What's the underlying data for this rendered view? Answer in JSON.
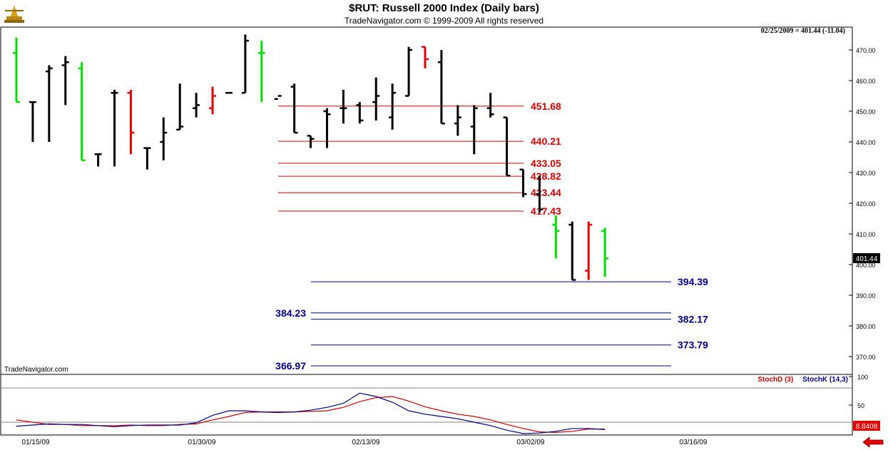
{
  "header": {
    "title": "$RUT:  Russell 2000 Index  (Daily bars)",
    "copyright": "TradeNavigator.com © 1999-2009 All rights reserved"
  },
  "readout": "02/25/2009 = 401.44 (-11.04)",
  "watermark": "TradeNavigator.com",
  "last_price_tag": "401.44",
  "stoch_value_tag": "8.8408",
  "stoch_legend": {
    "d": "StochD (3)",
    "k": "StochK (14,3)"
  },
  "colors": {
    "up_day": "#00dd00",
    "down_day": "#000000",
    "reversal": "#e00000",
    "resistance": "#d40000",
    "support": "#00008b"
  },
  "chart_data": [
    {
      "type": "ohlc",
      "title": "$RUT:  Russell 2000 Index  (Daily bars)",
      "ylim": [
        360,
        476
      ],
      "y_ticks": [
        370,
        380,
        390,
        400,
        410,
        420,
        430,
        440,
        450,
        460,
        470
      ],
      "x_ticks": [
        "01/15/09",
        "01/30/09",
        "02/13/09",
        "03/02/09",
        "03/16/09"
      ],
      "bars": [
        {
          "o": 469,
          "h": 474,
          "l": 453,
          "c": 453,
          "col": "g"
        },
        {
          "o": 453,
          "h": 453,
          "l": 440,
          "c": 453,
          "col": "k"
        },
        {
          "o": 463,
          "h": 465,
          "l": 440,
          "c": 464,
          "col": "k"
        },
        {
          "o": 465,
          "h": 468,
          "l": 452,
          "c": 466,
          "col": "k"
        },
        {
          "o": 464,
          "h": 466,
          "l": 434,
          "c": 434,
          "col": "g"
        },
        {
          "o": 436,
          "h": 436,
          "l": 432,
          "c": 436,
          "col": "k"
        },
        {
          "o": 456,
          "h": 457,
          "l": 432,
          "c": 456,
          "col": "k"
        },
        {
          "o": 456,
          "h": 457,
          "l": 436,
          "c": 443,
          "col": "r"
        },
        {
          "o": 438,
          "h": 438,
          "l": 431,
          "c": 438,
          "col": "k"
        },
        {
          "o": 440,
          "h": 448,
          "l": 434,
          "c": 443,
          "col": "k"
        },
        {
          "o": 444,
          "h": 459,
          "l": 444,
          "c": 445,
          "col": "k"
        },
        {
          "o": 451,
          "h": 456,
          "l": 448,
          "c": 452,
          "col": "k"
        },
        {
          "o": 451,
          "h": 458,
          "l": 449,
          "c": 455,
          "col": "r"
        },
        {
          "o": 456,
          "h": 456,
          "l": 456,
          "c": 456,
          "col": "k"
        },
        {
          "o": 456,
          "h": 475,
          "l": 456,
          "c": 473,
          "col": "k"
        },
        {
          "o": 469,
          "h": 473,
          "l": 453,
          "c": 469,
          "col": "g"
        },
        {
          "o": 454,
          "h": 454,
          "l": 454,
          "c": 455,
          "col": "k"
        },
        {
          "o": 458,
          "h": 459,
          "l": 443,
          "c": 443,
          "col": "k"
        },
        {
          "o": 442,
          "h": 442,
          "l": 438,
          "c": 441,
          "col": "k"
        },
        {
          "o": 450,
          "h": 451,
          "l": 438,
          "c": 449,
          "col": "k"
        },
        {
          "o": 451,
          "h": 457,
          "l": 446,
          "c": 451,
          "col": "k"
        },
        {
          "o": 452,
          "h": 453,
          "l": 446,
          "c": 447,
          "col": "k"
        },
        {
          "o": 453,
          "h": 461,
          "l": 447,
          "c": 455,
          "col": "k"
        },
        {
          "o": 448,
          "h": 459,
          "l": 444,
          "c": 456,
          "col": "k"
        },
        {
          "o": 455,
          "h": 471,
          "l": 455,
          "c": 470,
          "col": "k"
        },
        {
          "o": 471,
          "h": 471,
          "l": 464,
          "c": 467,
          "col": "r"
        },
        {
          "o": 466,
          "h": 470,
          "l": 446,
          "c": 446,
          "col": "k"
        },
        {
          "o": 446,
          "h": 452,
          "l": 442,
          "c": 448,
          "col": "k"
        },
        {
          "o": 445,
          "h": 452,
          "l": 436,
          "c": 451,
          "col": "k"
        },
        {
          "o": 451,
          "h": 456,
          "l": 448,
          "c": 449,
          "col": "k"
        },
        {
          "o": 448,
          "h": 448,
          "l": 429,
          "c": 429,
          "col": "k"
        },
        {
          "o": 431,
          "h": 431,
          "l": 422,
          "c": 423,
          "col": "k"
        },
        {
          "o": 423,
          "h": 429,
          "l": 417,
          "c": 418,
          "col": "k"
        },
        {
          "o": 413,
          "h": 416,
          "l": 402,
          "c": 411,
          "col": "g"
        },
        {
          "o": 413,
          "h": 414,
          "l": 395,
          "c": 395,
          "col": "k"
        },
        {
          "o": 398,
          "h": 414,
          "l": 395,
          "c": 413,
          "col": "r"
        },
        {
          "o": 411,
          "h": 412,
          "l": 396,
          "c": 402,
          "col": "g"
        }
      ],
      "levels": [
        {
          "label": "451.68",
          "value": 451.68,
          "kind": "resistance"
        },
        {
          "label": "440.21",
          "value": 440.21,
          "kind": "resistance"
        },
        {
          "label": "433.05",
          "value": 433.05,
          "kind": "resistance"
        },
        {
          "label": "428.82",
          "value": 428.82,
          "kind": "resistance"
        },
        {
          "label": "423.44",
          "value": 423.44,
          "kind": "resistance"
        },
        {
          "label": "417.43",
          "value": 417.43,
          "kind": "resistance"
        },
        {
          "label": "394.39",
          "value": 394.39,
          "kind": "support",
          "side": "right"
        },
        {
          "label": "384.23",
          "value": 384.23,
          "kind": "support",
          "side": "left"
        },
        {
          "label": "382.17",
          "value": 382.17,
          "kind": "support",
          "side": "right"
        },
        {
          "label": "373.79",
          "value": 373.79,
          "kind": "support",
          "side": "right"
        },
        {
          "label": "366.97",
          "value": 366.97,
          "kind": "support",
          "side": "left"
        }
      ]
    },
    {
      "type": "line",
      "ylim": [
        -5,
        100
      ],
      "y_ticks": [
        50,
        100
      ],
      "hlines": [
        80,
        20
      ],
      "series": [
        {
          "name": "StochD (3)",
          "color": "#d40000",
          "values": [
            24,
            20,
            16,
            16,
            14,
            14,
            14,
            15,
            14,
            14,
            16,
            17,
            24,
            30,
            37,
            38,
            38,
            38,
            39,
            40,
            46,
            56,
            63,
            65,
            57,
            47,
            40,
            34,
            30,
            24,
            16,
            9,
            3,
            2,
            4,
            8,
            8
          ]
        },
        {
          "name": "StochK (14,3)",
          "color": "#00008b",
          "values": [
            13,
            15,
            17,
            16,
            16,
            14,
            12,
            14,
            15,
            15,
            15,
            19,
            32,
            40,
            40,
            38,
            37,
            38,
            41,
            46,
            53,
            71,
            65,
            55,
            40,
            34,
            30,
            26,
            20,
            14,
            6,
            0,
            1,
            4,
            9,
            9,
            7
          ]
        }
      ]
    }
  ]
}
